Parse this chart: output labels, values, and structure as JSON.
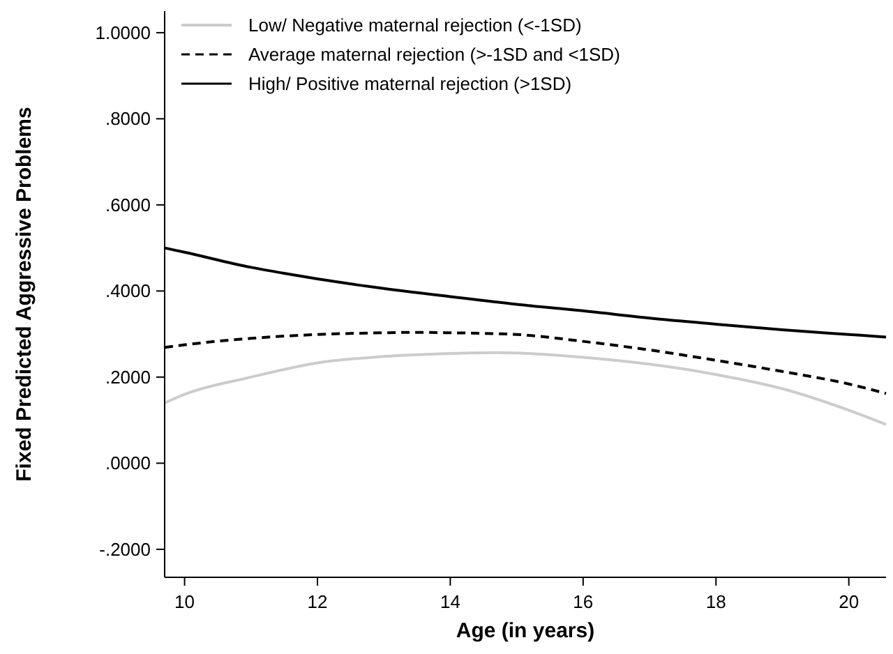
{
  "chart_data": {
    "type": "line",
    "xlabel": "Age (in years)",
    "ylabel": "Fixed Predicted Aggressive Problems",
    "xlim": [
      9.7,
      20.56
    ],
    "ylim": [
      -0.265,
      1.05
    ],
    "xticks": [
      10,
      12,
      14,
      16,
      18,
      20
    ],
    "yticks": [
      {
        "value": -0.2,
        "label": "-.2000"
      },
      {
        "value": 0,
        "label": ".0000"
      },
      {
        "value": 0.2,
        "label": ".2000"
      },
      {
        "value": 0.4,
        "label": ".4000"
      },
      {
        "value": 0.6,
        "label": ".6000"
      },
      {
        "value": 0.8,
        "label": ".8000"
      },
      {
        "value": 1,
        "label": "1.0000"
      }
    ],
    "grid": false,
    "legend": "top left",
    "series": [
      {
        "name": "Low/ Negative maternal rejection (<-1SD)",
        "color": "#cccccc",
        "line_style": "solid",
        "x": [
          9.7,
          10,
          11,
          12,
          13,
          14,
          14.7,
          15,
          16,
          17,
          18,
          19,
          20,
          20.56
        ],
        "values": [
          0.14,
          0.16,
          0.2,
          0.233,
          0.248,
          0.255,
          0.257,
          0.256,
          0.246,
          0.23,
          0.206,
          0.173,
          0.123,
          0.09
        ]
      },
      {
        "name": "Average maternal rejection (>-1SD and <1SD)",
        "color": "#000000",
        "line_style": "dashed",
        "x": [
          9.7,
          10,
          11,
          12,
          13,
          13.5,
          14,
          15,
          16,
          17,
          18,
          19,
          20,
          20.56
        ],
        "values": [
          0.269,
          0.275,
          0.29,
          0.299,
          0.303,
          0.304,
          0.303,
          0.299,
          0.283,
          0.263,
          0.239,
          0.213,
          0.184,
          0.162
        ]
      },
      {
        "name": "High/ Positive maternal rejection (>1SD)",
        "color": "#000000",
        "line_style": "solid",
        "x": [
          9.7,
          10,
          11,
          11.5,
          12,
          13,
          14,
          15,
          16,
          17,
          18,
          19,
          20,
          20.56
        ],
        "values": [
          0.5,
          0.49,
          0.455,
          0.441,
          0.428,
          0.406,
          0.387,
          0.369,
          0.354,
          0.337,
          0.323,
          0.31,
          0.299,
          0.293
        ]
      }
    ]
  }
}
